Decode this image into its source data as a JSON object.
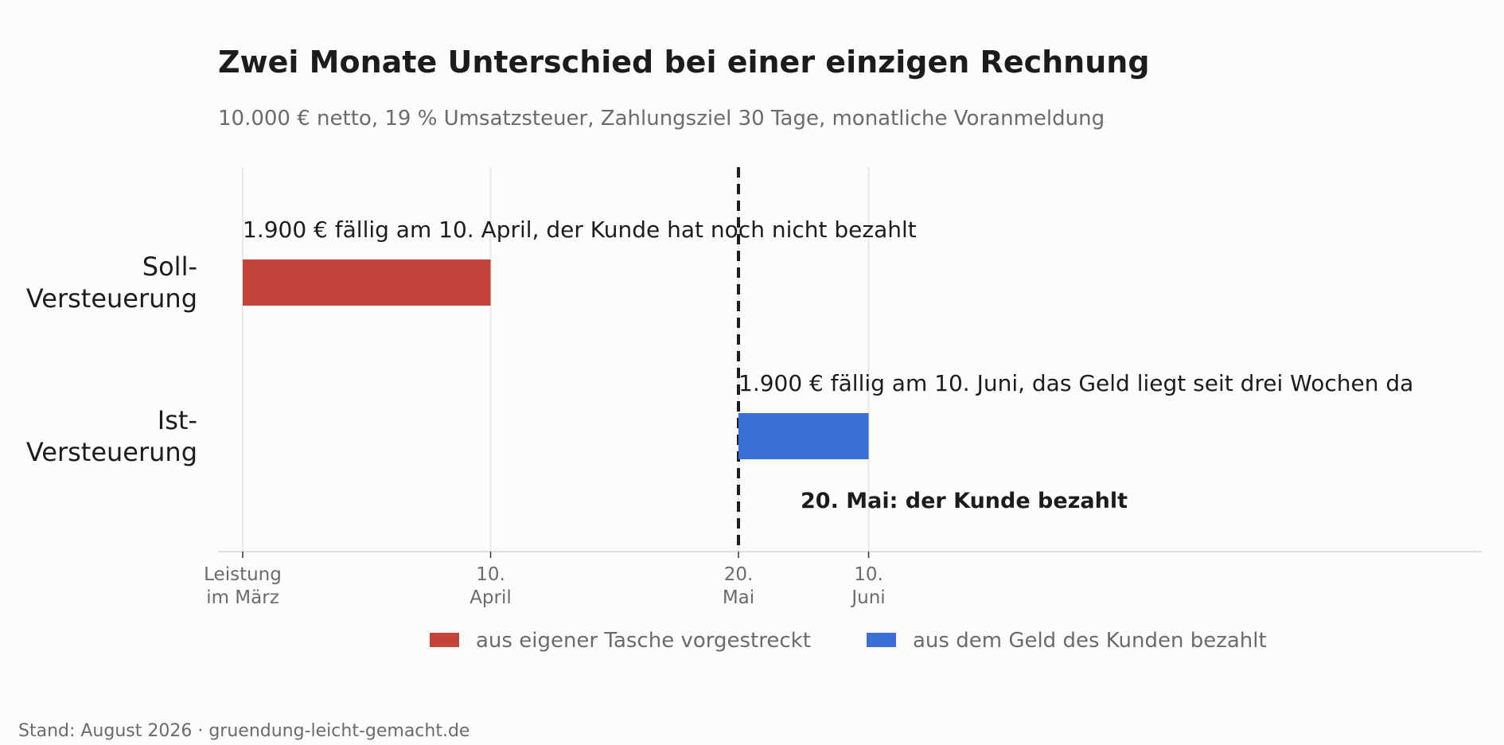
{
  "chart_data": {
    "type": "bar",
    "orientation": "horizontal",
    "title": "Zwei Monate Unterschied bei einer einzigen Rechnung",
    "subtitle": "10.000 € netto, 19 % Umsatzsteuer, Zahlungsziel 30 Tage, monatliche Voranmeldung",
    "x_axis": {
      "type": "date",
      "range": [
        "2026-03-01",
        "2026-06-10"
      ],
      "ticks": [
        {
          "value": "2026-03-01",
          "label": [
            "Leistung",
            "im März"
          ]
        },
        {
          "value": "2026-04-10",
          "label": [
            "10.",
            "April"
          ]
        },
        {
          "value": "2026-05-20",
          "label": [
            "20.",
            "Mai"
          ]
        },
        {
          "value": "2026-06-10",
          "label": [
            "10.",
            "Juni"
          ]
        }
      ]
    },
    "categories": [
      {
        "label": [
          "Soll-",
          "Versteuerung"
        ],
        "start": "2026-03-01",
        "end": "2026-04-10",
        "series": "own",
        "bar_label": "1.900 € fällig am 10. April, der Kunde hat noch nicht bezahlt"
      },
      {
        "label": [
          "Ist-",
          "Versteuerung"
        ],
        "start": "2026-05-20",
        "end": "2026-06-10",
        "series": "client",
        "bar_label": "1.900 € fällig am 10. Juni, das Geld liegt seit drei Wochen da"
      }
    ],
    "series": [
      {
        "key": "own",
        "name": "aus eigener Tasche vorgestreckt",
        "color": "#c4433b"
      },
      {
        "key": "client",
        "name": "aus dem Geld des Kunden bezahlt",
        "color": "#3b6fd6"
      }
    ],
    "reference_line": {
      "value": "2026-05-20",
      "style": "dashed",
      "color": "#1c1c1c",
      "annotation": "20. Mai: der Kunde bezahlt"
    },
    "grid": true,
    "legend_position": "bottom"
  },
  "footer": {
    "source": "Stand: August 2026 · gruendung-leicht-gemacht.de"
  }
}
